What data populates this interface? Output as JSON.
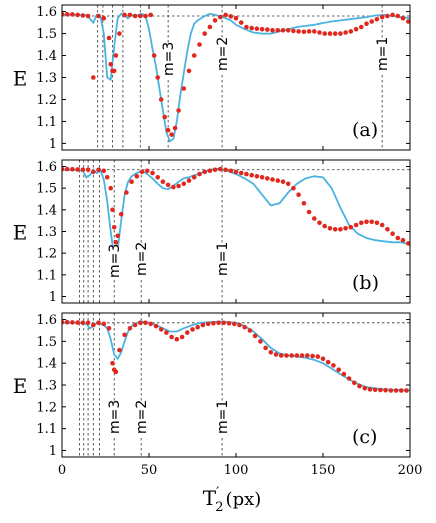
{
  "chart_data": [
    {
      "type": "line",
      "panel_label": "(a)",
      "ylabel": "E",
      "xlim": [
        0,
        200
      ],
      "ylim": [
        0.97,
        1.63
      ],
      "yticks": [
        "1",
        "1.1",
        "1.2",
        "1.3",
        "1.4",
        "1.5",
        "1.6"
      ],
      "ytick_values": [
        1,
        1.1,
        1.2,
        1.3,
        1.4,
        1.5,
        1.6
      ],
      "reference_y": 1.58,
      "dashed_x": [
        20.5,
        23.5,
        29,
        35,
        45,
        61,
        92,
        184
      ],
      "mode_labels": [
        {
          "text": "m=3",
          "x": 61
        },
        {
          "text": "m=2",
          "x": 92
        },
        {
          "text": "m=1",
          "x": 184
        }
      ],
      "series": [
        {
          "style": "line",
          "x": [
            0,
            10,
            14,
            16,
            18,
            20,
            22,
            24,
            26,
            28,
            30,
            32,
            34,
            36,
            38,
            40,
            42,
            44,
            46,
            48,
            50,
            52,
            54,
            56,
            58,
            60,
            62,
            64,
            66,
            68,
            70,
            72,
            74,
            76,
            78,
            80,
            82,
            85,
            88,
            91,
            94,
            97,
            100,
            105,
            110,
            115,
            120,
            125,
            130,
            135,
            140,
            145,
            150,
            155,
            160,
            165,
            170,
            175,
            180,
            185,
            190,
            195,
            200
          ],
          "y": [
            1.585,
            1.585,
            1.583,
            1.568,
            1.55,
            1.585,
            1.58,
            1.5,
            1.3,
            1.29,
            1.44,
            1.57,
            1.59,
            1.58,
            1.57,
            1.585,
            1.58,
            1.585,
            1.59,
            1.58,
            1.52,
            1.43,
            1.35,
            1.25,
            1.15,
            1.05,
            1.01,
            1.02,
            1.1,
            1.22,
            1.32,
            1.42,
            1.5,
            1.545,
            1.56,
            1.57,
            1.58,
            1.59,
            1.585,
            1.578,
            1.57,
            1.56,
            1.54,
            1.52,
            1.505,
            1.5,
            1.5,
            1.51,
            1.52,
            1.53,
            1.535,
            1.54,
            1.548,
            1.555,
            1.56,
            1.565,
            1.57,
            1.575,
            1.582,
            1.585,
            1.58,
            1.575,
            1.57
          ]
        },
        {
          "style": "dots",
          "x": [
            0,
            3,
            6,
            9,
            12,
            15,
            18,
            21,
            24,
            27,
            28,
            29,
            30,
            31,
            33,
            36,
            39,
            42,
            45,
            48,
            51,
            53,
            55,
            57,
            59,
            61,
            63,
            65,
            67,
            70,
            73,
            76,
            79,
            82,
            85,
            88,
            91,
            94,
            97,
            100,
            103,
            106,
            109,
            112,
            115,
            118,
            121,
            124,
            127,
            130,
            133,
            136,
            139,
            142,
            145,
            148,
            151,
            154,
            157,
            160,
            163,
            166,
            169,
            172,
            175,
            178,
            181,
            184,
            187,
            190,
            193,
            196,
            199
          ],
          "y": [
            1.588,
            1.588,
            1.587,
            1.585,
            1.582,
            1.58,
            1.3,
            1.58,
            1.57,
            1.48,
            1.36,
            1.33,
            1.33,
            1.4,
            1.5,
            1.585,
            1.585,
            1.58,
            1.58,
            1.58,
            1.585,
            1.4,
            1.3,
            1.2,
            1.12,
            1.06,
            1.04,
            1.07,
            1.15,
            1.25,
            1.33,
            1.4,
            1.45,
            1.5,
            1.53,
            1.56,
            1.575,
            1.585,
            1.578,
            1.57,
            1.55,
            1.53,
            1.525,
            1.522,
            1.52,
            1.518,
            1.515,
            1.515,
            1.515,
            1.515,
            1.512,
            1.51,
            1.508,
            1.51,
            1.51,
            1.505,
            1.5,
            1.5,
            1.5,
            1.5,
            1.505,
            1.51,
            1.52,
            1.53,
            1.545,
            1.555,
            1.565,
            1.575,
            1.58,
            1.585,
            1.58,
            1.57,
            1.555
          ]
        }
      ]
    },
    {
      "type": "line",
      "panel_label": "(b)",
      "ylabel": "E",
      "xlim": [
        0,
        200
      ],
      "ylim": [
        0.97,
        1.63
      ],
      "yticks": [
        "1",
        "1.1",
        "1.2",
        "1.3",
        "1.4",
        "1.5",
        "1.6"
      ],
      "ytick_values": [
        1,
        1.1,
        1.2,
        1.3,
        1.4,
        1.5,
        1.6
      ],
      "reference_y": 1.585,
      "dashed_x": [
        10,
        12.5,
        15,
        18,
        21.5,
        30,
        45.5,
        92
      ],
      "mode_labels": [
        {
          "text": "m=3",
          "x": 30
        },
        {
          "text": "m=2",
          "x": 45.5
        },
        {
          "text": "m=1",
          "x": 92
        }
      ],
      "series": [
        {
          "style": "line",
          "x": [
            0,
            8,
            12,
            14,
            16,
            18,
            20,
            22,
            24,
            26,
            28,
            30,
            32,
            34,
            36,
            38,
            40,
            43,
            46,
            49,
            52,
            55,
            58,
            61,
            64,
            67,
            70,
            73,
            76,
            80,
            85,
            90,
            95,
            100,
            105,
            110,
            115,
            120,
            125,
            130,
            135,
            140,
            145,
            150,
            155,
            160,
            165,
            170,
            175,
            180,
            185,
            190,
            195,
            200
          ],
          "y": [
            1.585,
            1.585,
            1.58,
            1.55,
            1.56,
            1.585,
            1.57,
            1.585,
            1.54,
            1.44,
            1.3,
            1.18,
            1.22,
            1.35,
            1.47,
            1.53,
            1.555,
            1.57,
            1.58,
            1.565,
            1.545,
            1.52,
            1.5,
            1.495,
            1.51,
            1.53,
            1.545,
            1.55,
            1.56,
            1.57,
            1.585,
            1.59,
            1.58,
            1.565,
            1.545,
            1.52,
            1.47,
            1.42,
            1.43,
            1.48,
            1.52,
            1.545,
            1.555,
            1.55,
            1.5,
            1.41,
            1.33,
            1.29,
            1.27,
            1.26,
            1.255,
            1.25,
            1.25,
            1.24
          ]
        },
        {
          "style": "dots",
          "x": [
            0,
            3,
            6,
            9,
            12,
            15,
            18,
            21,
            24,
            26,
            28,
            29,
            30,
            31,
            32,
            34,
            37,
            40,
            43,
            46,
            49,
            52,
            55,
            58,
            61,
            64,
            67,
            70,
            73,
            76,
            79,
            82,
            85,
            88,
            91,
            94,
            97,
            100,
            103,
            106,
            109,
            112,
            115,
            118,
            121,
            124,
            127,
            130,
            133,
            136,
            139,
            142,
            145,
            148,
            151,
            154,
            157,
            160,
            163,
            166,
            169,
            172,
            175,
            178,
            181,
            184,
            187,
            190,
            193,
            196,
            199
          ],
          "y": [
            1.588,
            1.588,
            1.587,
            1.586,
            1.585,
            1.585,
            1.575,
            1.585,
            1.58,
            1.55,
            1.5,
            1.4,
            1.32,
            1.25,
            1.28,
            1.38,
            1.48,
            1.53,
            1.555,
            1.575,
            1.58,
            1.57,
            1.55,
            1.53,
            1.515,
            1.505,
            1.51,
            1.52,
            1.535,
            1.55,
            1.565,
            1.575,
            1.58,
            1.585,
            1.588,
            1.585,
            1.58,
            1.575,
            1.57,
            1.565,
            1.56,
            1.555,
            1.55,
            1.545,
            1.54,
            1.535,
            1.53,
            1.52,
            1.5,
            1.47,
            1.43,
            1.39,
            1.36,
            1.34,
            1.325,
            1.315,
            1.31,
            1.31,
            1.315,
            1.32,
            1.33,
            1.34,
            1.345,
            1.345,
            1.34,
            1.33,
            1.31,
            1.29,
            1.27,
            1.26,
            1.245
          ]
        }
      ]
    },
    {
      "type": "line",
      "panel_label": "(c)",
      "ylabel": "E",
      "xlim": [
        0,
        200
      ],
      "ylim": [
        0.97,
        1.63
      ],
      "yticks": [
        "1",
        "1.1",
        "1.2",
        "1.3",
        "1.4",
        "1.5",
        "1.6"
      ],
      "ytick_values": [
        1,
        1.1,
        1.2,
        1.3,
        1.4,
        1.5,
        1.6
      ],
      "reference_y": 1.585,
      "dashed_x": [
        10,
        12.5,
        15,
        18,
        21.5,
        30,
        45.5,
        92
      ],
      "mode_labels": [
        {
          "text": "m=3",
          "x": 30
        },
        {
          "text": "m=2",
          "x": 45.5
        },
        {
          "text": "m=1",
          "x": 92
        }
      ],
      "series": [
        {
          "style": "line",
          "x": [
            0,
            10,
            14,
            16,
            18,
            20,
            22,
            24,
            26,
            28,
            30,
            32,
            34,
            36,
            38,
            40,
            43,
            46,
            50,
            54,
            58,
            62,
            66,
            70,
            75,
            80,
            85,
            90,
            95,
            100,
            105,
            110,
            115,
            120,
            125,
            130,
            135,
            140,
            145,
            150,
            155,
            160,
            165,
            170,
            175,
            180,
            185,
            190,
            195,
            200
          ],
          "y": [
            1.585,
            1.585,
            1.58,
            1.56,
            1.57,
            1.585,
            1.58,
            1.575,
            1.56,
            1.51,
            1.44,
            1.42,
            1.45,
            1.5,
            1.545,
            1.57,
            1.585,
            1.59,
            1.585,
            1.575,
            1.56,
            1.545,
            1.545,
            1.56,
            1.575,
            1.585,
            1.588,
            1.59,
            1.588,
            1.585,
            1.57,
            1.545,
            1.51,
            1.47,
            1.445,
            1.435,
            1.43,
            1.425,
            1.415,
            1.4,
            1.375,
            1.35,
            1.325,
            1.305,
            1.29,
            1.285,
            1.28,
            1.278,
            1.276,
            1.275
          ]
        },
        {
          "style": "dots",
          "x": [
            0,
            3,
            6,
            9,
            12,
            15,
            18,
            21,
            24,
            27,
            29,
            30,
            31,
            33,
            36,
            39,
            42,
            45,
            48,
            51,
            54,
            57,
            60,
            63,
            66,
            69,
            72,
            75,
            78,
            81,
            84,
            87,
            90,
            93,
            96,
            99,
            102,
            105,
            108,
            111,
            114,
            117,
            120,
            123,
            126,
            129,
            132,
            135,
            138,
            141,
            144,
            147,
            150,
            153,
            156,
            159,
            162,
            165,
            168,
            171,
            174,
            177,
            180,
            183,
            186,
            189,
            192,
            195,
            198
          ],
          "y": [
            1.588,
            1.588,
            1.587,
            1.586,
            1.585,
            1.585,
            1.575,
            1.585,
            1.58,
            1.56,
            1.4,
            1.37,
            1.36,
            1.46,
            1.53,
            1.56,
            1.575,
            1.585,
            1.585,
            1.58,
            1.57,
            1.555,
            1.54,
            1.52,
            1.51,
            1.52,
            1.54,
            1.555,
            1.565,
            1.575,
            1.58,
            1.583,
            1.585,
            1.585,
            1.583,
            1.58,
            1.575,
            1.565,
            1.55,
            1.525,
            1.5,
            1.47,
            1.45,
            1.44,
            1.435,
            1.435,
            1.435,
            1.435,
            1.435,
            1.435,
            1.433,
            1.43,
            1.42,
            1.405,
            1.39,
            1.37,
            1.35,
            1.33,
            1.31,
            1.295,
            1.285,
            1.28,
            1.278,
            1.277,
            1.276,
            1.275,
            1.275,
            1.275,
            1.275
          ]
        }
      ]
    }
  ],
  "shared_x_axis": {
    "xticks": [
      "0",
      "50",
      "100",
      "150",
      "200"
    ],
    "xtick_values": [
      0,
      50,
      100,
      150,
      200
    ],
    "xlabel_main": "T",
    "xlabel_super": "′",
    "xlabel_sub": "2",
    "xlabel_unit": "(px)"
  },
  "colors": {
    "line": "#4ab3e0",
    "dots": "#e0281f",
    "frame": "#000000"
  }
}
